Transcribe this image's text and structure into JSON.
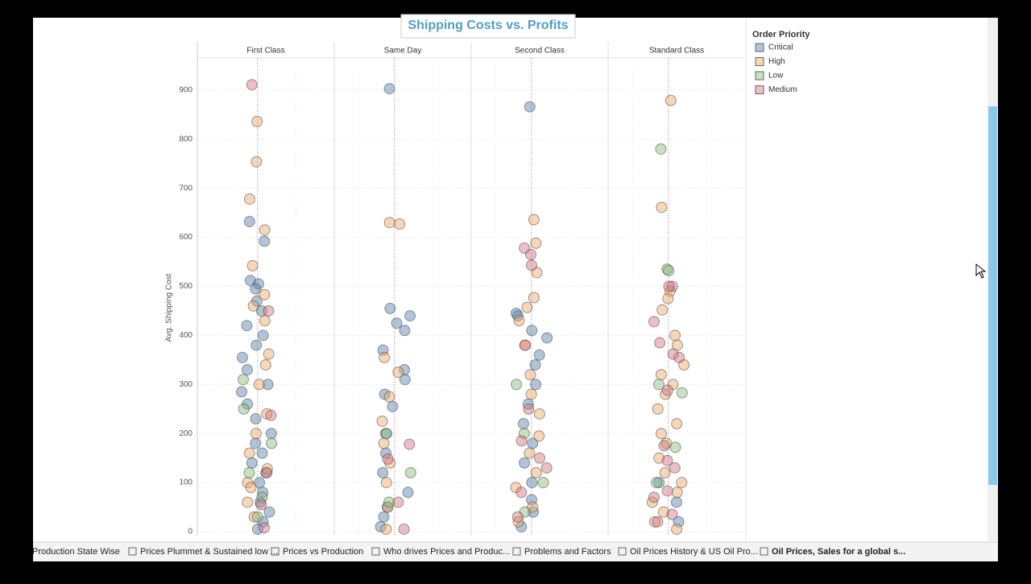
{
  "chart_data": {
    "type": "scatter",
    "title": "Shipping Costs vs. Profits",
    "y_label": "Avg. Shipping Cost",
    "categories": [
      "First Class",
      "Same Day",
      "Second Class",
      "Standard Class"
    ],
    "legend_title": "Order Priority",
    "legend_position": "right",
    "ylim": [
      0,
      1000
    ],
    "yticks": [
      0,
      100,
      200,
      300,
      400,
      500,
      600,
      700,
      800,
      900
    ],
    "grid": true,
    "series": [
      {
        "name": "Critical",
        "color": "#4f7fae",
        "values": [
          [
            632,
            592,
            512,
            505,
            495,
            470,
            450,
            420,
            400,
            380,
            355,
            330,
            300,
            285,
            260,
            230,
            200,
            180,
            160,
            140,
            120,
            100,
            80,
            60,
            40,
            20,
            5
          ],
          [
            903,
            455,
            440,
            425,
            410,
            370,
            330,
            310,
            280,
            255,
            200,
            160,
            120,
            80,
            50,
            30,
            10
          ],
          [
            866,
            445,
            440,
            410,
            395,
            360,
            340,
            300,
            260,
            220,
            180,
            140,
            100,
            65,
            40,
            10
          ],
          [
            100,
            60,
            20
          ]
        ]
      },
      {
        "name": "High",
        "color": "#f0a35e",
        "values": [
          [
            836,
            754,
            678,
            615,
            542,
            483,
            460,
            430,
            362,
            340,
            300,
            240,
            200,
            160,
            128,
            100,
            90,
            60,
            30
          ],
          [
            630,
            627,
            355,
            325,
            275,
            225,
            180,
            140,
            100,
            50,
            5
          ],
          [
            636,
            588,
            528,
            477,
            457,
            430,
            380,
            320,
            280,
            240,
            195,
            160,
            120,
            90,
            50,
            20
          ],
          [
            879,
            661,
            490,
            475,
            452,
            400,
            380,
            340,
            320,
            300,
            280,
            250,
            220,
            200,
            180,
            150,
            120,
            100,
            80,
            60,
            40,
            20,
            5
          ]
        ]
      },
      {
        "name": "Low",
        "color": "#86bc76",
        "values": [
          [
            310,
            250,
            180,
            120,
            70,
            30
          ],
          [
            200,
            120,
            60
          ],
          [
            300,
            200,
            100,
            40
          ],
          [
            780,
            535,
            532,
            300,
            283,
            172,
            100
          ]
        ]
      },
      {
        "name": "Medium",
        "color": "#d6717f",
        "values": [
          [
            911,
            450,
            237,
            120,
            55,
            8
          ],
          [
            178,
            148,
            60,
            5
          ],
          [
            565,
            578,
            543,
            380,
            250,
            185,
            150,
            130,
            80,
            30
          ],
          [
            500,
            500,
            428,
            385,
            362,
            355,
            288,
            175,
            145,
            130,
            83,
            70,
            35,
            20
          ]
        ]
      }
    ]
  },
  "tabs": [
    "Production State Wise",
    "Prices Plummet & Sustained low ...",
    "Prices vs Production",
    "Who drives Prices and Produc...",
    "Problems and Factors",
    "Oil Prices History & US Oil Pro...",
    "Oil Prices, Sales for a global s..."
  ]
}
